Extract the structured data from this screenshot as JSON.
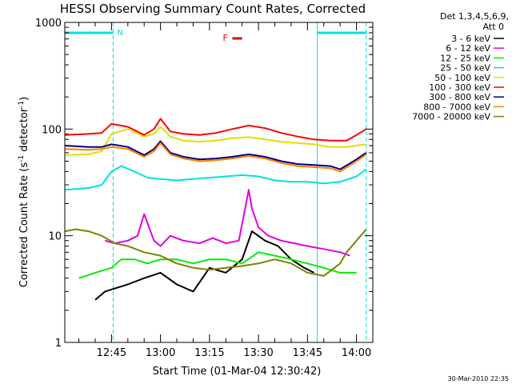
{
  "chart_data": {
    "type": "line",
    "title": "HESSI Observing Summary Count Rates, Corrected",
    "xlabel": "Start Time (01-Mar-04 12:30:42)",
    "ylabel": "Corrected Count Rate (s",
    "ylabel_sup1": "-1",
    "ylabel_mid": " detector",
    "ylabel_sup2": "-1",
    "ylabel_end": ")",
    "yscale": "log",
    "xlim": [
      "12:30:42",
      "14:05:00"
    ],
    "ylim": [
      1,
      1000
    ],
    "x_ticks": [
      "12:45",
      "13:00",
      "13:15",
      "13:30",
      "13:45",
      "14:00"
    ],
    "y_ticks": [
      "1",
      "10",
      "100",
      "1000"
    ],
    "legend_header": [
      "Det 1,3,4,5,6,9,",
      "Att 0"
    ],
    "flare_marker": {
      "label": "F",
      "start": "13:22",
      "end": "13:25",
      "color": "#e8000b"
    },
    "night_marker": {
      "label": "N"
    },
    "saa_bars": [
      {
        "start": "12:30:42",
        "end": "12:45:30"
      },
      {
        "start": "13:48",
        "end": "14:03"
      }
    ],
    "cyan_vlines_dashed": [
      "12:45:30",
      "14:03"
    ],
    "cyan_vlines_solid": [
      "12:30:42",
      "13:48"
    ],
    "series": [
      {
        "name": "3 - 6 keV",
        "color": "#000000",
        "x": [
          "12:40",
          "12:43",
          "12:46",
          "12:50",
          "12:55",
          "13:00",
          "13:05",
          "13:10",
          "13:15",
          "13:20",
          "13:25",
          "13:28",
          "13:32",
          "13:36",
          "13:40",
          "13:44",
          "13:47"
        ],
        "y": [
          2.5,
          3,
          3.2,
          3.5,
          4,
          4.5,
          3.5,
          3,
          5,
          4.5,
          6,
          11,
          9,
          8,
          6,
          5,
          4.5
        ]
      },
      {
        "name": "6 - 12 keV",
        "color": "#e000e0",
        "x": [
          "12:43",
          "12:46",
          "12:50",
          "12:53",
          "12:55",
          "12:58",
          "13:00",
          "13:03",
          "13:07",
          "13:12",
          "13:16",
          "13:20",
          "13:24",
          "13:27",
          "13:28",
          "13:30",
          "13:33",
          "13:37",
          "13:41",
          "13:45",
          "13:50",
          "13:55",
          "13:58"
        ],
        "y": [
          9,
          8.5,
          9,
          10,
          16,
          9,
          8,
          10,
          9,
          8.5,
          9.5,
          8.5,
          9,
          27,
          18,
          12,
          10,
          9,
          8.5,
          8,
          7.5,
          7,
          6.5
        ]
      },
      {
        "name": "12 - 25 keV",
        "color": "#00ee00",
        "x": [
          "12:35",
          "12:40",
          "12:45",
          "12:48",
          "12:52",
          "12:56",
          "13:00",
          "13:05",
          "13:10",
          "13:15",
          "13:20",
          "13:25",
          "13:30",
          "13:35",
          "13:40",
          "13:45",
          "13:50",
          "13:55",
          "14:00"
        ],
        "y": [
          4,
          4.5,
          5,
          6,
          6,
          5.5,
          6,
          6,
          5.5,
          6,
          6,
          5.5,
          7,
          6.5,
          6,
          5.5,
          5,
          4.5,
          4.5
        ]
      },
      {
        "name": "25 - 50 keV",
        "color": "#00e0e0",
        "x": [
          "12:30:42",
          "12:38",
          "12:42",
          "12:45",
          "12:48",
          "12:52",
          "12:56",
          "13:00",
          "13:05",
          "13:10",
          "13:15",
          "13:20",
          "13:25",
          "13:30",
          "13:35",
          "13:40",
          "13:45",
          "13:50",
          "13:55",
          "14:00",
          "14:03"
        ],
        "y": [
          27,
          28,
          30,
          40,
          45,
          40,
          35,
          34,
          33,
          34,
          35,
          36,
          37,
          36,
          33,
          32,
          32,
          31,
          32,
          36,
          42
        ]
      },
      {
        "name": "50 - 100 keV",
        "color": "#e0e000",
        "x": [
          "12:30:42",
          "12:38",
          "12:42",
          "12:45",
          "12:50",
          "12:55",
          "12:58",
          "13:00",
          "13:03",
          "13:07",
          "13:12",
          "13:17",
          "13:22",
          "13:27",
          "13:32",
          "13:37",
          "13:42",
          "13:47",
          "13:52",
          "13:57",
          "14:00",
          "14:03"
        ],
        "y": [
          57,
          58,
          62,
          90,
          100,
          85,
          90,
          105,
          85,
          78,
          76,
          78,
          82,
          84,
          80,
          76,
          74,
          72,
          68,
          68,
          70,
          72
        ]
      },
      {
        "name": "100 - 300 keV",
        "color": "#ff0000",
        "x": [
          "12:30:42",
          "12:38",
          "12:42",
          "12:45",
          "12:50",
          "12:55",
          "12:58",
          "13:00",
          "13:03",
          "13:07",
          "13:12",
          "13:17",
          "13:22",
          "13:27",
          "13:32",
          "13:37",
          "13:42",
          "13:47",
          "13:52",
          "13:57",
          "14:00",
          "14:03"
        ],
        "y": [
          88,
          90,
          92,
          112,
          105,
          88,
          100,
          125,
          95,
          90,
          88,
          92,
          100,
          108,
          102,
          92,
          85,
          80,
          78,
          78,
          88,
          100
        ]
      },
      {
        "name": "300 - 800 keV",
        "color": "#000080",
        "x": [
          "12:30:42",
          "12:38",
          "12:42",
          "12:45",
          "12:50",
          "12:55",
          "12:58",
          "13:00",
          "13:03",
          "13:07",
          "13:12",
          "13:17",
          "13:22",
          "13:27",
          "13:32",
          "13:37",
          "13:42",
          "13:47",
          "13:52",
          "13:55",
          "14:00",
          "14:03"
        ],
        "y": [
          70,
          68,
          68,
          72,
          68,
          57,
          65,
          77,
          60,
          55,
          52,
          53,
          55,
          58,
          55,
          50,
          47,
          46,
          45,
          42,
          52,
          60
        ]
      },
      {
        "name": "800 - 7000 keV",
        "color": "#ff8000",
        "x": [
          "12:30:42",
          "12:38",
          "12:42",
          "12:45",
          "12:50",
          "12:55",
          "12:58",
          "13:00",
          "13:03",
          "13:07",
          "13:12",
          "13:17",
          "13:22",
          "13:27",
          "13:32",
          "13:37",
          "13:42",
          "13:47",
          "13:52",
          "13:55",
          "14:00",
          "14:03"
        ],
        "y": [
          65,
          64,
          65,
          68,
          65,
          55,
          62,
          74,
          58,
          53,
          50,
          51,
          53,
          56,
          53,
          48,
          45,
          44,
          43,
          40,
          50,
          58
        ]
      },
      {
        "name": "7000 - 20000 keV",
        "color": "#808000",
        "x": [
          "12:30:42",
          "12:34",
          "12:38",
          "12:42",
          "12:46",
          "12:50",
          "12:55",
          "13:00",
          "13:05",
          "13:10",
          "13:15",
          "13:20",
          "13:25",
          "13:30",
          "13:35",
          "13:40",
          "13:45",
          "13:50",
          "13:55",
          "13:57",
          "14:00",
          "14:03"
        ],
        "y": [
          11,
          11.5,
          11,
          10,
          8.5,
          8,
          7,
          6.5,
          5.5,
          5,
          4.8,
          5,
          5.2,
          5.5,
          6,
          5.5,
          4.5,
          4.2,
          5.5,
          7,
          9,
          11.5
        ]
      }
    ]
  },
  "footer": {
    "timestamp": "30-Mar-2010 22:35"
  }
}
